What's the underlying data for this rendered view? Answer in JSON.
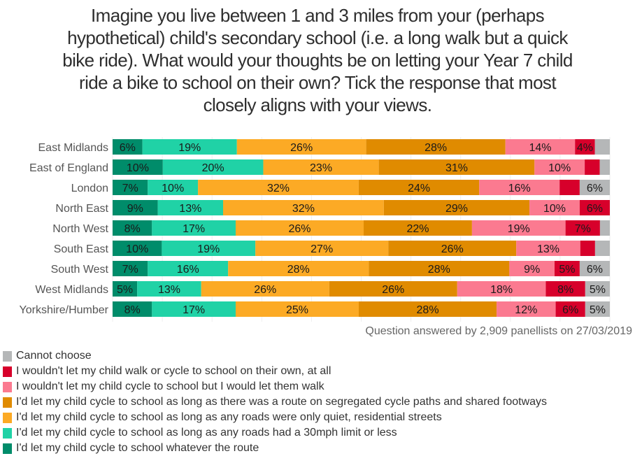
{
  "chart_data": {
    "type": "bar",
    "orientation": "horizontal",
    "stacked": true,
    "title": "Imagine you live between 1 and 3 miles from your (perhaps hypothetical) child's secondary school (i.e. a long walk but a quick bike ride). What would your thoughts be on letting your Year 7 child ride a bike to school on their own? Tick the response that most closely aligns with your views.",
    "title_lines": [
      "Imagine you live between 1 and 3 miles from your (perhaps",
      "hypothetical) child's secondary school (i.e. a long walk but a quick",
      "bike ride). What would your thoughts be on letting your Year 7 child",
      "ride a bike to school on their own? Tick the response that most",
      "closely aligns with your views."
    ],
    "xlabel": "",
    "ylabel": "",
    "xlim": [
      0,
      100
    ],
    "grid": true,
    "categories": [
      "East Midlands",
      "East of England",
      "London",
      "North East",
      "North West",
      "South East",
      "South West",
      "West Midlands",
      "Yorkshire/Humber"
    ],
    "series": [
      {
        "name": "I'd let my child cycle to school whatever the route",
        "color": "#008c6a",
        "values": [
          6,
          10,
          7,
          9,
          8,
          10,
          7,
          5,
          8
        ],
        "labels": [
          "6%",
          "10%",
          "7%",
          "9%",
          "8%",
          "10%",
          "7%",
          "5%",
          "8%"
        ]
      },
      {
        "name": "I'd let my child cycle to school as long as any roads had a 30mph limit or less",
        "color": "#20d2a6",
        "values": [
          19,
          20,
          10,
          13,
          17,
          19,
          16,
          13,
          17
        ],
        "labels": [
          "19%",
          "20%",
          "10%",
          "13%",
          "17%",
          "19%",
          "16%",
          "13%",
          "17%"
        ]
      },
      {
        "name": "I'd let my child cycle to school as long as any roads were only quiet, residential streets",
        "color": "#fcaa25",
        "values": [
          26,
          23,
          32,
          32,
          26,
          27,
          28,
          26,
          25
        ],
        "labels": [
          "26%",
          "23%",
          "32%",
          "32%",
          "26%",
          "27%",
          "28%",
          "26%",
          "25%"
        ]
      },
      {
        "name": "I'd let my child cycle to school as long as there was a route on segregated cycle paths and shared footways",
        "color": "#e08b00",
        "values": [
          28,
          31,
          24,
          29,
          22,
          26,
          28,
          26,
          28
        ],
        "labels": [
          "28%",
          "31%",
          "24%",
          "29%",
          "22%",
          "26%",
          "28%",
          "26%",
          "28%"
        ]
      },
      {
        "name": "I wouldn't let my child cycle to school but I would let them walk",
        "color": "#fb7a90",
        "values": [
          14,
          10,
          16,
          10,
          19,
          13,
          9,
          18,
          12
        ],
        "labels": [
          "14%",
          "10%",
          "16%",
          "10%",
          "19%",
          "13%",
          "9%",
          "18%",
          "12%"
        ]
      },
      {
        "name": "I wouldn't let my child walk or cycle to school on their own, at all",
        "color": "#d7002b",
        "values": [
          4,
          3,
          4,
          6,
          7,
          3,
          5,
          8,
          6
        ],
        "labels": [
          "4%",
          "",
          "",
          "6%",
          "7%",
          "",
          "5%",
          "8%",
          "6%"
        ]
      },
      {
        "name": "Cannot choose",
        "color": "#b5b7b8",
        "values": [
          3,
          2,
          6,
          0,
          2,
          3,
          6,
          5,
          5
        ],
        "labels": [
          "",
          "",
          "6%",
          "",
          "",
          "",
          "6%",
          "5%",
          "5%"
        ]
      }
    ],
    "legend": {
      "placement": "bottom-left",
      "order": [
        6,
        5,
        4,
        3,
        2,
        1,
        0
      ]
    },
    "note": "Question answered by 2,909 panellists on 27/03/2019"
  }
}
